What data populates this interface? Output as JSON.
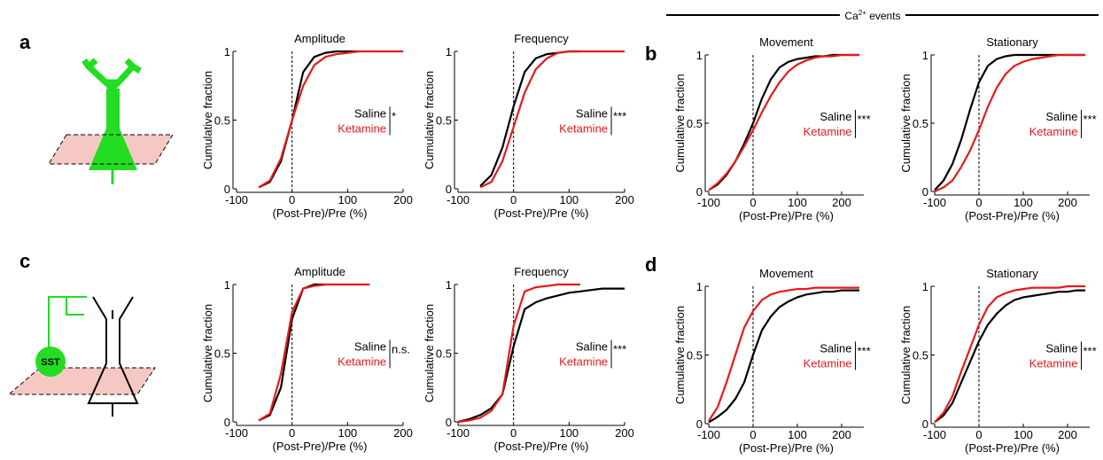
{
  "panel_labels": [
    "a",
    "b",
    "c",
    "d"
  ],
  "group_header": {
    "base": "Ca",
    "superscript": "2+",
    "suffix": " events"
  },
  "diagram_label": "SST",
  "chart_data": [
    {
      "type": "line",
      "title": "Amplitude",
      "xlabel": "(Post-Pre)/Pre (%)",
      "ylabel": "Cumulative fraction",
      "annotation": "*",
      "reference_line_x": 0,
      "xlim": [
        -100,
        200
      ],
      "ylim": [
        0,
        1
      ],
      "xticks": [
        -100,
        0,
        100,
        200
      ],
      "yticks": [
        0,
        0.5,
        1
      ],
      "x": [
        -100,
        -80,
        -60,
        -40,
        -20,
        0,
        20,
        40,
        60,
        80,
        100,
        120,
        140,
        160,
        180,
        200
      ],
      "series": [
        {
          "name": "Saline",
          "color": "#000000",
          "values": [
            null,
            null,
            0.01,
            0.05,
            0.2,
            0.5,
            0.85,
            0.96,
            0.99,
            1,
            1,
            1,
            null,
            null,
            null,
            null
          ]
        },
        {
          "name": "Ketamine",
          "color": "#e8191c",
          "values": [
            null,
            null,
            0.01,
            0.06,
            0.22,
            0.5,
            0.75,
            0.9,
            0.96,
            0.98,
            0.99,
            1,
            1,
            1,
            1,
            1
          ]
        }
      ]
    },
    {
      "type": "line",
      "title": "Frequency",
      "xlabel": "(Post-Pre)/Pre (%)",
      "ylabel": "Cumulative fraction",
      "annotation": "***",
      "reference_line_x": 0,
      "xlim": [
        -100,
        200
      ],
      "ylim": [
        0,
        1
      ],
      "xticks": [
        -100,
        0,
        100,
        200
      ],
      "yticks": [
        0,
        0.5,
        1
      ],
      "x": [
        -100,
        -80,
        -60,
        -40,
        -20,
        0,
        20,
        40,
        60,
        80,
        100,
        120,
        140,
        160,
        180,
        200
      ],
      "series": [
        {
          "name": "Saline",
          "color": "#000000",
          "values": [
            null,
            null,
            0.02,
            0.1,
            0.3,
            0.6,
            0.85,
            0.95,
            0.98,
            0.99,
            1,
            1,
            null,
            null,
            null,
            null
          ]
        },
        {
          "name": "Ketamine",
          "color": "#e8191c",
          "values": [
            null,
            null,
            0.01,
            0.05,
            0.2,
            0.45,
            0.7,
            0.87,
            0.95,
            0.99,
            1,
            1,
            1,
            1,
            1,
            1
          ]
        }
      ]
    },
    {
      "type": "line",
      "title": "Movement",
      "xlabel": "(Post-Pre)/Pre (%)",
      "ylabel": "Cumulative fraction",
      "annotation": "***",
      "reference_line_x": 0,
      "xlim": [
        -100,
        250
      ],
      "ylim": [
        0,
        1
      ],
      "xticks": [
        -100,
        0,
        100,
        200
      ],
      "yticks": [
        0,
        0.5,
        1
      ],
      "x": [
        -100,
        -80,
        -60,
        -40,
        -20,
        0,
        20,
        40,
        60,
        80,
        100,
        120,
        140,
        160,
        180,
        200,
        220,
        240
      ],
      "series": [
        {
          "name": "Saline",
          "color": "#000000",
          "values": [
            0.01,
            0.05,
            0.12,
            0.22,
            0.35,
            0.5,
            0.68,
            0.82,
            0.91,
            0.95,
            0.97,
            0.98,
            0.99,
            0.99,
            1,
            1,
            1,
            1
          ]
        },
        {
          "name": "Ketamine",
          "color": "#e8191c",
          "values": [
            0.01,
            0.06,
            0.13,
            0.22,
            0.33,
            0.45,
            0.58,
            0.7,
            0.8,
            0.88,
            0.93,
            0.96,
            0.98,
            0.99,
            0.99,
            1,
            1,
            1
          ]
        }
      ]
    },
    {
      "type": "line",
      "title": "Stationary",
      "xlabel": "(Post-Pre)/Pre (%)",
      "ylabel": "Cumulative fraction",
      "annotation": "***",
      "reference_line_x": 0,
      "xlim": [
        -100,
        250
      ],
      "ylim": [
        0,
        1
      ],
      "xticks": [
        -100,
        0,
        100,
        200
      ],
      "yticks": [
        0,
        0.5,
        1
      ],
      "x": [
        -100,
        -80,
        -60,
        -40,
        -20,
        0,
        20,
        40,
        60,
        80,
        100,
        120,
        140,
        160,
        180,
        200,
        220,
        240
      ],
      "series": [
        {
          "name": "Saline",
          "color": "#000000",
          "values": [
            0.01,
            0.08,
            0.2,
            0.38,
            0.6,
            0.8,
            0.92,
            0.97,
            0.99,
            1,
            1,
            1,
            1,
            1,
            1,
            1,
            1,
            1
          ]
        },
        {
          "name": "Ketamine",
          "color": "#e8191c",
          "values": [
            0,
            0.03,
            0.08,
            0.18,
            0.3,
            0.45,
            0.62,
            0.76,
            0.86,
            0.92,
            0.95,
            0.97,
            0.98,
            0.99,
            1,
            1,
            1,
            1
          ]
        }
      ]
    },
    {
      "type": "line",
      "title": "Amplitude",
      "xlabel": "(Post-Pre)/Pre (%)",
      "ylabel": "Cumulative fraction",
      "annotation": "n.s.",
      "reference_line_x": 0,
      "xlim": [
        -100,
        200
      ],
      "ylim": [
        0,
        1
      ],
      "xticks": [
        -100,
        0,
        100,
        200
      ],
      "yticks": [
        0,
        0.5,
        1
      ],
      "x": [
        -100,
        -80,
        -60,
        -40,
        -20,
        0,
        20,
        40,
        60,
        80,
        100,
        120,
        140,
        160,
        180,
        200
      ],
      "series": [
        {
          "name": "Saline",
          "color": "#000000",
          "values": [
            null,
            null,
            0.01,
            0.05,
            0.25,
            0.75,
            0.97,
            1,
            1,
            null,
            null,
            null,
            null,
            null,
            null,
            null
          ]
        },
        {
          "name": "Ketamine",
          "color": "#e8191c",
          "values": [
            null,
            null,
            0.01,
            0.06,
            0.35,
            0.8,
            0.97,
            0.99,
            1,
            1,
            1,
            1,
            1,
            null,
            null,
            null
          ]
        }
      ]
    },
    {
      "type": "line",
      "title": "Frequency",
      "xlabel": "(Post-Pre)/Pre (%)",
      "ylabel": "Cumulative fraction",
      "annotation": "***",
      "reference_line_x": 0,
      "xlim": [
        -100,
        200
      ],
      "ylim": [
        0,
        1
      ],
      "xticks": [
        -100,
        0,
        100,
        200
      ],
      "yticks": [
        0,
        0.5,
        1
      ],
      "x": [
        -100,
        -80,
        -60,
        -40,
        -20,
        0,
        20,
        40,
        60,
        80,
        100,
        120,
        140,
        160,
        180,
        200
      ],
      "series": [
        {
          "name": "Saline",
          "color": "#000000",
          "values": [
            0,
            0.02,
            0.05,
            0.1,
            0.2,
            0.55,
            0.82,
            0.87,
            0.9,
            0.92,
            0.94,
            0.95,
            0.96,
            0.97,
            0.97,
            0.97
          ]
        },
        {
          "name": "Ketamine",
          "color": "#e8191c",
          "values": [
            0,
            0.01,
            0.03,
            0.08,
            0.2,
            0.7,
            0.95,
            0.98,
            0.99,
            1,
            1,
            1,
            null,
            null,
            null,
            null
          ]
        }
      ]
    },
    {
      "type": "line",
      "title": "Movement",
      "xlabel": "(Post-Pre)/Pre (%)",
      "ylabel": "Cumulative fraction",
      "annotation": "***",
      "reference_line_x": 0,
      "xlim": [
        -100,
        250
      ],
      "ylim": [
        0,
        1
      ],
      "xticks": [
        -100,
        0,
        100,
        200
      ],
      "yticks": [
        0,
        0.5,
        1
      ],
      "x": [
        -100,
        -80,
        -60,
        -40,
        -20,
        0,
        20,
        40,
        60,
        80,
        100,
        120,
        140,
        160,
        180,
        200,
        220,
        240
      ],
      "series": [
        {
          "name": "Saline",
          "color": "#000000",
          "values": [
            0.01,
            0.05,
            0.1,
            0.18,
            0.3,
            0.5,
            0.68,
            0.78,
            0.85,
            0.89,
            0.92,
            0.94,
            0.95,
            0.96,
            0.96,
            0.97,
            0.97,
            0.97
          ]
        },
        {
          "name": "Ketamine",
          "color": "#e8191c",
          "values": [
            0.02,
            0.12,
            0.3,
            0.5,
            0.7,
            0.82,
            0.9,
            0.94,
            0.96,
            0.97,
            0.98,
            0.98,
            0.99,
            0.99,
            0.99,
            0.99,
            0.99,
            0.99
          ]
        }
      ]
    },
    {
      "type": "line",
      "title": "Stationary",
      "xlabel": "(Post-Pre)/Pre (%)",
      "ylabel": "Cumulative fraction",
      "annotation": "***",
      "reference_line_x": 0,
      "xlim": [
        -100,
        250
      ],
      "ylim": [
        0,
        1
      ],
      "xticks": [
        -100,
        0,
        100,
        200
      ],
      "yticks": [
        0,
        0.5,
        1
      ],
      "x": [
        -100,
        -80,
        -60,
        -40,
        -20,
        0,
        20,
        40,
        60,
        80,
        100,
        120,
        140,
        160,
        180,
        200,
        220,
        240
      ],
      "series": [
        {
          "name": "Saline",
          "color": "#000000",
          "values": [
            0.01,
            0.06,
            0.15,
            0.3,
            0.45,
            0.6,
            0.72,
            0.8,
            0.86,
            0.9,
            0.92,
            0.93,
            0.94,
            0.95,
            0.96,
            0.96,
            0.97,
            0.97
          ]
        },
        {
          "name": "Ketamine",
          "color": "#e8191c",
          "values": [
            0.01,
            0.08,
            0.2,
            0.38,
            0.55,
            0.72,
            0.85,
            0.92,
            0.95,
            0.97,
            0.98,
            0.99,
            0.99,
            0.99,
            0.99,
            1,
            1,
            1
          ]
        }
      ]
    }
  ]
}
